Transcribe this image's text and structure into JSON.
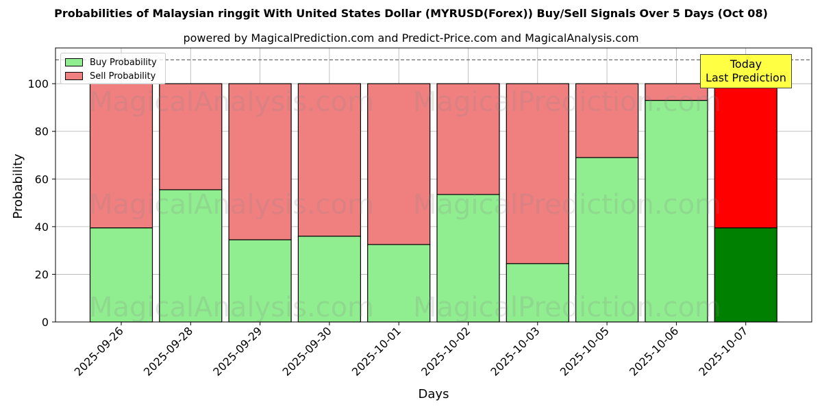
{
  "title": "Probabilities of Malaysian ringgit With United States Dollar (MYRUSD(Forex)) Buy/Sell Signals Over 5 Days (Oct 08)",
  "subtitle": "powered by MagicalPrediction.com and Predict-Price.com and MagicalAnalysis.com",
  "watermarks": {
    "left": "MagicalAnalysis.com",
    "right": "MagicalPrediction.com"
  },
  "annotation": {
    "line1": "Today",
    "line2": "Last Prediction"
  },
  "colors": {
    "buy": "#90ee90",
    "sell": "#f08080",
    "buy_today": "#008000",
    "sell_today": "#ff0000",
    "annotation_bg": "#ffff44"
  },
  "chart_data": {
    "type": "bar",
    "stacked": true,
    "title": "Probabilities of Malaysian ringgit With United States Dollar (MYRUSD(Forex)) Buy/Sell Signals Over 5 Days (Oct 08)",
    "xlabel": "Days",
    "ylabel": "Probability",
    "ylim": [
      0,
      115
    ],
    "yticks": [
      0,
      20,
      40,
      60,
      80,
      100
    ],
    "reference_line": 110,
    "grid": true,
    "legend_position": "top-left",
    "categories": [
      "2025-09-26",
      "2025-09-28",
      "2025-09-29",
      "2025-09-30",
      "2025-10-01",
      "2025-10-02",
      "2025-10-03",
      "2025-10-05",
      "2025-10-06",
      "2025-10-07"
    ],
    "series": [
      {
        "name": "Buy Probability",
        "values": [
          39.5,
          55.5,
          34.5,
          36,
          32.5,
          53.5,
          24.5,
          69,
          93,
          39.5
        ]
      },
      {
        "name": "Sell Probability",
        "values": [
          60.5,
          44.5,
          65.5,
          64,
          67.5,
          46.5,
          75.5,
          31,
          7,
          60.5
        ]
      }
    ]
  }
}
